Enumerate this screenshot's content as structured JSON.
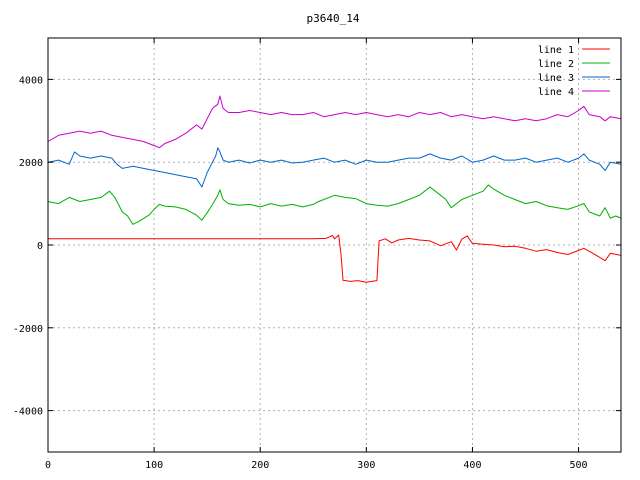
{
  "chart_data": {
    "type": "line",
    "title": "p3640_14",
    "xlabel": "",
    "ylabel": "",
    "xlim": [
      0,
      540
    ],
    "ylim": [
      -5000,
      5000
    ],
    "x_ticks": [
      0,
      100,
      200,
      300,
      400,
      500
    ],
    "y_ticks": [
      -4000,
      -2000,
      0,
      2000,
      4000
    ],
    "grid": true,
    "legend_position": "top-right",
    "series": [
      {
        "name": "line 1",
        "color": "#ff0000",
        "points": [
          [
            0,
            150
          ],
          [
            100,
            150
          ],
          [
            200,
            150
          ],
          [
            250,
            150
          ],
          [
            262,
            160
          ],
          [
            268,
            230
          ],
          [
            270,
            150
          ],
          [
            274,
            240
          ],
          [
            276,
            -200
          ],
          [
            278,
            -850
          ],
          [
            285,
            -880
          ],
          [
            292,
            -860
          ],
          [
            300,
            -900
          ],
          [
            305,
            -880
          ],
          [
            310,
            -860
          ],
          [
            312,
            100
          ],
          [
            318,
            150
          ],
          [
            324,
            50
          ],
          [
            330,
            120
          ],
          [
            340,
            160
          ],
          [
            350,
            120
          ],
          [
            360,
            100
          ],
          [
            370,
            -20
          ],
          [
            380,
            80
          ],
          [
            385,
            -120
          ],
          [
            390,
            140
          ],
          [
            395,
            220
          ],
          [
            400,
            40
          ],
          [
            410,
            20
          ],
          [
            420,
            0
          ],
          [
            430,
            -40
          ],
          [
            440,
            -30
          ],
          [
            450,
            -80
          ],
          [
            460,
            -150
          ],
          [
            470,
            -110
          ],
          [
            480,
            -180
          ],
          [
            490,
            -230
          ],
          [
            500,
            -130
          ],
          [
            505,
            -80
          ],
          [
            510,
            -150
          ],
          [
            520,
            -300
          ],
          [
            525,
            -380
          ],
          [
            530,
            -200
          ],
          [
            540,
            -250
          ]
        ]
      },
      {
        "name": "line 2",
        "color": "#00b000",
        "points": [
          [
            0,
            1050
          ],
          [
            10,
            1000
          ],
          [
            20,
            1150
          ],
          [
            30,
            1050
          ],
          [
            40,
            1100
          ],
          [
            50,
            1150
          ],
          [
            58,
            1300
          ],
          [
            63,
            1150
          ],
          [
            70,
            800
          ],
          [
            75,
            700
          ],
          [
            80,
            500
          ],
          [
            85,
            560
          ],
          [
            95,
            720
          ],
          [
            100,
            860
          ],
          [
            105,
            980
          ],
          [
            110,
            940
          ],
          [
            120,
            920
          ],
          [
            130,
            860
          ],
          [
            140,
            720
          ],
          [
            145,
            600
          ],
          [
            150,
            780
          ],
          [
            155,
            980
          ],
          [
            160,
            1200
          ],
          [
            162,
            1330
          ],
          [
            165,
            1100
          ],
          [
            170,
            1000
          ],
          [
            180,
            960
          ],
          [
            190,
            980
          ],
          [
            200,
            920
          ],
          [
            210,
            1000
          ],
          [
            220,
            940
          ],
          [
            230,
            980
          ],
          [
            240,
            920
          ],
          [
            250,
            980
          ],
          [
            255,
            1050
          ],
          [
            260,
            1100
          ],
          [
            270,
            1200
          ],
          [
            280,
            1150
          ],
          [
            290,
            1120
          ],
          [
            300,
            1000
          ],
          [
            310,
            960
          ],
          [
            320,
            940
          ],
          [
            330,
            1000
          ],
          [
            340,
            1100
          ],
          [
            350,
            1200
          ],
          [
            360,
            1400
          ],
          [
            365,
            1300
          ],
          [
            370,
            1200
          ],
          [
            375,
            1100
          ],
          [
            380,
            900
          ],
          [
            385,
            1000
          ],
          [
            390,
            1100
          ],
          [
            400,
            1200
          ],
          [
            410,
            1300
          ],
          [
            415,
            1450
          ],
          [
            420,
            1350
          ],
          [
            430,
            1200
          ],
          [
            440,
            1100
          ],
          [
            450,
            1000
          ],
          [
            460,
            1050
          ],
          [
            470,
            950
          ],
          [
            480,
            900
          ],
          [
            490,
            860
          ],
          [
            500,
            950
          ],
          [
            505,
            1000
          ],
          [
            510,
            800
          ],
          [
            520,
            700
          ],
          [
            525,
            900
          ],
          [
            530,
            650
          ],
          [
            535,
            700
          ],
          [
            540,
            650
          ]
        ]
      },
      {
        "name": "line 3",
        "color": "#0066cc",
        "points": [
          [
            0,
            2000
          ],
          [
            10,
            2050
          ],
          [
            20,
            1950
          ],
          [
            25,
            2250
          ],
          [
            30,
            2150
          ],
          [
            40,
            2100
          ],
          [
            50,
            2150
          ],
          [
            60,
            2100
          ],
          [
            65,
            1950
          ],
          [
            70,
            1850
          ],
          [
            80,
            1900
          ],
          [
            90,
            1850
          ],
          [
            100,
            1800
          ],
          [
            110,
            1750
          ],
          [
            120,
            1700
          ],
          [
            130,
            1650
          ],
          [
            140,
            1600
          ],
          [
            145,
            1400
          ],
          [
            150,
            1750
          ],
          [
            155,
            2000
          ],
          [
            158,
            2150
          ],
          [
            160,
            2350
          ],
          [
            162,
            2250
          ],
          [
            165,
            2050
          ],
          [
            170,
            2000
          ],
          [
            180,
            2050
          ],
          [
            190,
            1980
          ],
          [
            200,
            2050
          ],
          [
            210,
            2000
          ],
          [
            220,
            2050
          ],
          [
            230,
            1980
          ],
          [
            240,
            2000
          ],
          [
            250,
            2050
          ],
          [
            260,
            2100
          ],
          [
            270,
            2000
          ],
          [
            280,
            2050
          ],
          [
            290,
            1950
          ],
          [
            300,
            2050
          ],
          [
            310,
            2000
          ],
          [
            320,
            2000
          ],
          [
            330,
            2050
          ],
          [
            340,
            2100
          ],
          [
            350,
            2100
          ],
          [
            360,
            2200
          ],
          [
            370,
            2100
          ],
          [
            380,
            2050
          ],
          [
            390,
            2150
          ],
          [
            400,
            2000
          ],
          [
            410,
            2050
          ],
          [
            420,
            2150
          ],
          [
            430,
            2050
          ],
          [
            440,
            2050
          ],
          [
            450,
            2100
          ],
          [
            460,
            2000
          ],
          [
            470,
            2050
          ],
          [
            480,
            2100
          ],
          [
            490,
            2000
          ],
          [
            500,
            2100
          ],
          [
            505,
            2200
          ],
          [
            510,
            2050
          ],
          [
            520,
            1950
          ],
          [
            525,
            1800
          ],
          [
            530,
            2000
          ],
          [
            540,
            1950
          ]
        ]
      },
      {
        "name": "line 4",
        "color": "#cc00cc",
        "points": [
          [
            0,
            2500
          ],
          [
            10,
            2650
          ],
          [
            20,
            2700
          ],
          [
            30,
            2750
          ],
          [
            40,
            2700
          ],
          [
            50,
            2750
          ],
          [
            60,
            2650
          ],
          [
            70,
            2600
          ],
          [
            80,
            2550
          ],
          [
            90,
            2500
          ],
          [
            100,
            2400
          ],
          [
            105,
            2350
          ],
          [
            110,
            2450
          ],
          [
            120,
            2550
          ],
          [
            130,
            2700
          ],
          [
            140,
            2900
          ],
          [
            145,
            2800
          ],
          [
            150,
            3050
          ],
          [
            155,
            3300
          ],
          [
            160,
            3400
          ],
          [
            162,
            3600
          ],
          [
            165,
            3300
          ],
          [
            170,
            3200
          ],
          [
            180,
            3200
          ],
          [
            190,
            3250
          ],
          [
            200,
            3200
          ],
          [
            210,
            3150
          ],
          [
            220,
            3200
          ],
          [
            230,
            3150
          ],
          [
            240,
            3150
          ],
          [
            250,
            3200
          ],
          [
            260,
            3100
          ],
          [
            270,
            3150
          ],
          [
            280,
            3200
          ],
          [
            290,
            3150
          ],
          [
            300,
            3200
          ],
          [
            310,
            3150
          ],
          [
            320,
            3100
          ],
          [
            330,
            3150
          ],
          [
            340,
            3100
          ],
          [
            350,
            3200
          ],
          [
            360,
            3150
          ],
          [
            370,
            3200
          ],
          [
            380,
            3100
          ],
          [
            390,
            3150
          ],
          [
            400,
            3100
          ],
          [
            410,
            3050
          ],
          [
            420,
            3100
          ],
          [
            430,
            3050
          ],
          [
            440,
            3000
          ],
          [
            450,
            3050
          ],
          [
            460,
            3000
          ],
          [
            470,
            3050
          ],
          [
            480,
            3150
          ],
          [
            490,
            3100
          ],
          [
            500,
            3250
          ],
          [
            505,
            3350
          ],
          [
            510,
            3150
          ],
          [
            520,
            3100
          ],
          [
            525,
            3000
          ],
          [
            530,
            3100
          ],
          [
            540,
            3050
          ]
        ]
      }
    ]
  }
}
